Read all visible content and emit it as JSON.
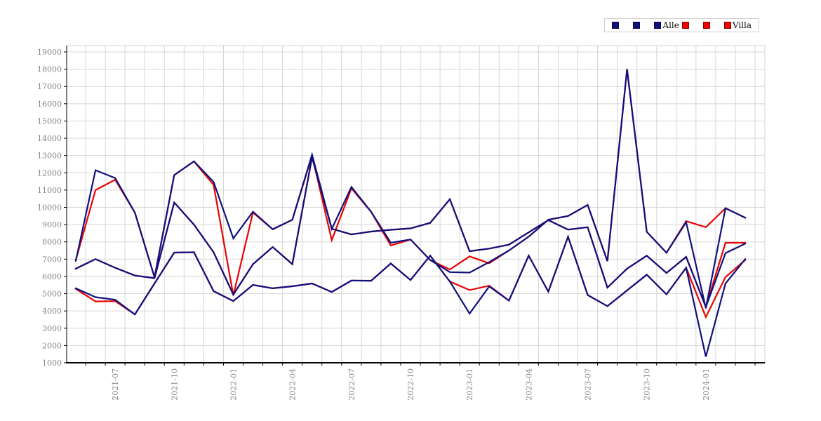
{
  "legend": {
    "items": [
      {
        "label": "",
        "color": "#10107e"
      },
      {
        "label": "",
        "color": "#10107e"
      },
      {
        "label": "Alle",
        "color": "#10107e"
      },
      {
        "label": "",
        "color": "#f00505"
      },
      {
        "label": "",
        "color": "#f00505"
      },
      {
        "label": "Villa",
        "color": "#f00505"
      }
    ]
  },
  "chart_data": {
    "type": "line",
    "title": "",
    "xlabel": "",
    "ylabel": "",
    "ylim": [
      1000,
      19000
    ],
    "y_tick_step": 1000,
    "grid": true,
    "legend_position": "top-right",
    "colors": {
      "navy": "#10107e",
      "red": "#e60505",
      "grid": "#d6d6d6",
      "axis": "#000000",
      "tick_label": "#848484"
    },
    "x": [
      "2021-05",
      "2021-06",
      "2021-07",
      "2021-08",
      "2021-09",
      "2021-10",
      "2021-11",
      "2021-12",
      "2022-01",
      "2022-02",
      "2022-03",
      "2022-04",
      "2022-05",
      "2022-06",
      "2022-07",
      "2022-08",
      "2022-09",
      "2022-10",
      "2022-11",
      "2022-12",
      "2023-01",
      "2023-02",
      "2023-03",
      "2023-04",
      "2023-05",
      "2023-06",
      "2023-07",
      "2023-08",
      "2023-09",
      "2023-10",
      "2023-11",
      "2023-12",
      "2024-01",
      "2024-02",
      "2024-03"
    ],
    "x_axis_tick_labels": [
      "2021-07",
      "2021-10",
      "2022-01",
      "2022-04",
      "2022-07",
      "2022-10",
      "2023-01",
      "2023-04",
      "2023-07",
      "2023-10",
      "2024-01"
    ],
    "series": [
      {
        "name": "villa-2",
        "group": "Villa",
        "color": "#e60505",
        "values": [
          6450,
          7000,
          6500,
          6050,
          5900,
          10280,
          9000,
          7400,
          4950,
          6710,
          7700,
          6710,
          12900,
          8760,
          8430,
          8600,
          8700,
          8780,
          9100,
          10470,
          7460,
          7610,
          7840,
          8550,
          9260,
          8710,
          8850,
          5350,
          6450,
          7200,
          6200,
          7130,
          4230,
          7950,
          7950
        ]
      },
      {
        "name": "villa-3",
        "group": "Villa",
        "color": "#e60505",
        "values": [
          5280,
          4550,
          4570,
          3800,
          5590,
          7380,
          7400,
          5150,
          4570,
          5510,
          5310,
          5430,
          5590,
          5100,
          5760,
          5750,
          6750,
          5790,
          7200,
          5700,
          5210,
          5460,
          4600,
          7200,
          5120,
          8300,
          4920,
          4280,
          5190,
          6100,
          4960,
          6500,
          3650,
          5960,
          6950
        ]
      },
      {
        "name": "villa-1",
        "group": "Villa",
        "color": "#e60505",
        "values": [
          6950,
          11000,
          11600,
          9700,
          5950,
          11870,
          12660,
          11300,
          4900,
          9700,
          8730,
          9280,
          13000,
          8100,
          11100,
          9740,
          7790,
          8140,
          6950,
          6400,
          7160,
          6760,
          7500,
          8300,
          9280,
          9500,
          10140,
          6880,
          18000,
          8580,
          7370,
          9200,
          8850,
          9950,
          9400
        ]
      },
      {
        "name": "alle-2",
        "group": "Alle",
        "color": "#10107e",
        "values": [
          6450,
          7000,
          6500,
          6050,
          5900,
          10280,
          9000,
          7400,
          4950,
          6710,
          7700,
          6710,
          12900,
          8760,
          8430,
          8600,
          8700,
          8780,
          9100,
          10470,
          7460,
          7610,
          7840,
          8550,
          9260,
          8710,
          8850,
          5350,
          6450,
          7200,
          6200,
          7130,
          4230,
          7350,
          7900
        ]
      },
      {
        "name": "alle-3",
        "group": "Alle",
        "color": "#10107e",
        "values": [
          5310,
          4800,
          4650,
          3800,
          5590,
          7380,
          7400,
          5150,
          4570,
          5510,
          5310,
          5430,
          5590,
          5100,
          5760,
          5750,
          6750,
          5790,
          7200,
          5700,
          3850,
          5420,
          4600,
          7200,
          5120,
          8300,
          4920,
          4280,
          5190,
          6100,
          4960,
          6500,
          1350,
          5590,
          7000
        ]
      },
      {
        "name": "alle-1",
        "group": "Alle",
        "color": "#10107e",
        "values": [
          6900,
          12150,
          11700,
          9700,
          5950,
          11870,
          12660,
          11470,
          8200,
          9750,
          8730,
          9280,
          13050,
          8750,
          11180,
          9740,
          7950,
          8140,
          6950,
          6250,
          6220,
          6830,
          7500,
          8300,
          9280,
          9500,
          10140,
          6880,
          18000,
          8580,
          7370,
          9140,
          4160,
          9950,
          9400
        ]
      }
    ]
  }
}
